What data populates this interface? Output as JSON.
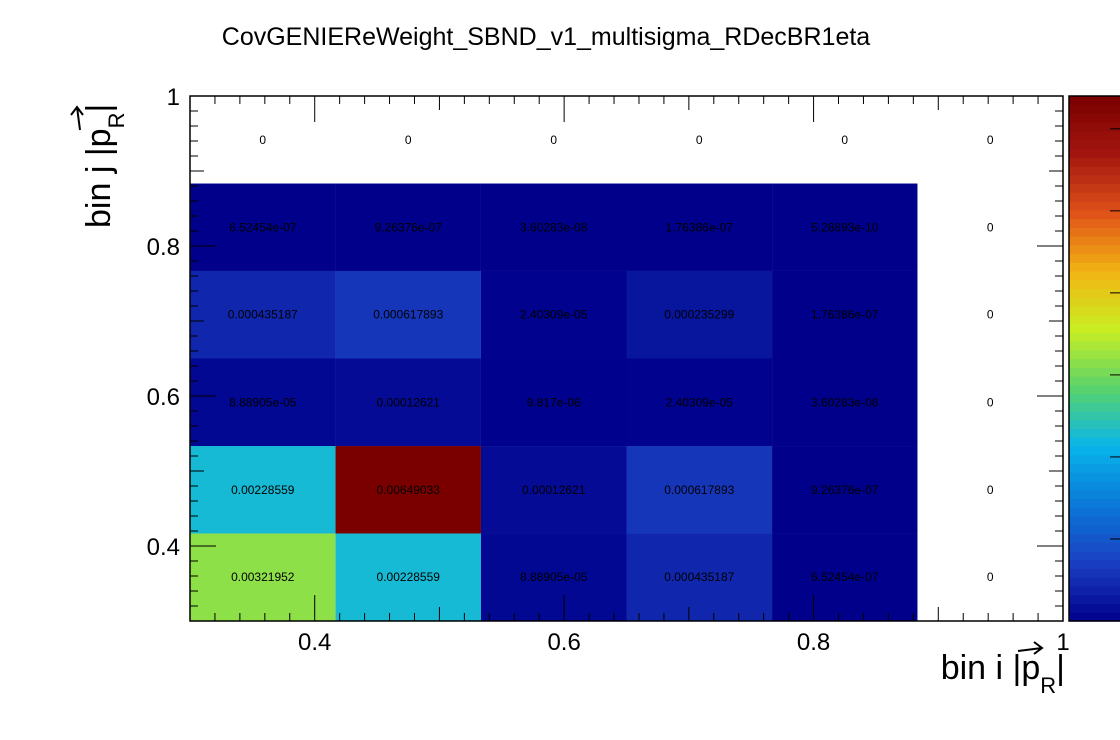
{
  "chart_data": {
    "type": "heatmap",
    "title": "CovGENIEReWeight_SBND_v1_multisigma_RDecBR1eta",
    "xlabel": {
      "pre": "bin i |",
      "sym": "p",
      "sub": "R",
      "post": "|"
    },
    "ylabel": {
      "pre": "bin j |",
      "sym": "p",
      "sub": "R",
      "post": "|"
    },
    "xlim": [
      0.3,
      1.0
    ],
    "ylim": [
      0.3,
      1.0
    ],
    "x_ticks": [
      {
        "value": 0.4,
        "label": "0.4"
      },
      {
        "value": 0.6,
        "label": "0.6"
      },
      {
        "value": 0.8,
        "label": "0.8"
      },
      {
        "value": 1.0,
        "label": "1"
      }
    ],
    "y_ticks": [
      {
        "value": 0.4,
        "label": "0.4"
      },
      {
        "value": 0.6,
        "label": "0.6"
      },
      {
        "value": 0.8,
        "label": "0.8"
      },
      {
        "value": 1.0,
        "label": "1"
      }
    ],
    "x_bin_edges": [
      0.3,
      0.4167,
      0.5333,
      0.65,
      0.7667,
      0.8833,
      1.0
    ],
    "y_bin_edges": [
      0.3,
      0.4167,
      0.5333,
      0.65,
      0.7667,
      0.8833,
      1.0
    ],
    "z_max": 0.00649033,
    "palette": [
      "#00008b",
      "#1a3fc2",
      "#0b78d8",
      "#08b5ea",
      "#5ad36b",
      "#c9ee22",
      "#f2b414",
      "#e0521a",
      "#a3160f",
      "#7a0000"
    ],
    "cells": [
      [
        "0.00321952",
        "0.00228559",
        "8.88905e-05",
        "0.000435187",
        "6.52454e-07",
        "0"
      ],
      [
        "0.00228559",
        "0.00649033",
        "0.00012621",
        "0.000617893",
        "9.26376e-07",
        "0"
      ],
      [
        "8.88905e-05",
        "0.00012621",
        "9.817e-06",
        "2.40309e-05",
        "3.60283e-08",
        "0"
      ],
      [
        "0.000435187",
        "0.000617893",
        "2.40309e-05",
        "0.000235299",
        "1.76386e-07",
        "0"
      ],
      [
        "6.52454e-07",
        "9.26376e-07",
        "3.60283e-08",
        "1.76386e-07",
        "5.28893e-10",
        "0"
      ],
      [
        "0",
        "0",
        "0",
        "0",
        "0",
        "0"
      ]
    ]
  }
}
